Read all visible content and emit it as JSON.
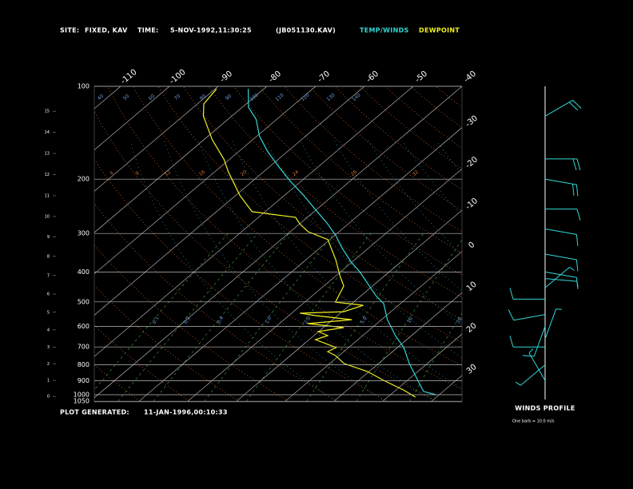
{
  "chart_data": {
    "type": "skew-t",
    "site_label": "SITE:",
    "site": "FIXED, KAV",
    "time_label": "TIME:",
    "time": "5-NOV-1992,11:30:25",
    "file": "(JB051130.KAV)",
    "footer_label": "PLOT GENERATED:",
    "footer_time": "11-JAN-1996,00:10:33",
    "wind_title": "WINDS PROFILE",
    "wind_note": "One barb = 10.0 m/s",
    "log_y": true,
    "ylim": [
      1050,
      100
    ],
    "yticks": [
      100,
      200,
      300,
      400,
      500,
      600,
      700,
      800,
      900,
      1000,
      1050
    ],
    "height_ticks": [
      0,
      1,
      2,
      3,
      4,
      5,
      6,
      7,
      8,
      9,
      10,
      11,
      12,
      13,
      14,
      15
    ],
    "isotherm_ticks": [
      -110,
      -100,
      -90,
      -80,
      -70,
      -60,
      -50,
      -40,
      -30,
      -20,
      -10,
      0,
      10,
      20,
      30
    ],
    "theta_labels": [
      "40",
      "50",
      "60",
      "70",
      "80",
      "90",
      "100",
      "110",
      "120",
      "130",
      "140"
    ],
    "orange_labels": [
      "4",
      "8",
      "12",
      "16",
      "20",
      "24",
      "28",
      "32"
    ],
    "mixing_ratio_labels": [
      "0.1",
      "0.2",
      "0.4",
      "1.0",
      "2.0",
      "5.0",
      "10",
      "20"
    ],
    "series": [
      {
        "name": "TEMP/WINDS",
        "color": "#33d6d6",
        "pressure": [
          1000,
          976,
          867,
          792,
          703,
          643,
          571,
          507,
          477,
          436,
          399,
          372,
          334,
          305,
          279,
          251,
          226,
          205,
          184,
          163,
          145,
          128,
          117,
          102
        ],
        "values": [
          29.3,
          26.0,
          20.5,
          16.3,
          11.3,
          6.7,
          1.2,
          -3.4,
          -7.0,
          -11.6,
          -16.1,
          -20.1,
          -25.5,
          -29.7,
          -34.3,
          -40.2,
          -46.0,
          -51.7,
          -57.6,
          -64.0,
          -69.5,
          -74.2,
          -78.7,
          -83.2
        ]
      },
      {
        "name": "DEWPOINT",
        "color": "#f0f020",
        "pressure": [
          1018,
          965,
          898,
          841,
          792,
          747,
          725,
          703,
          663,
          643,
          624,
          606,
          588,
          571,
          554,
          544,
          538,
          513,
          501,
          472,
          444,
          411,
          365,
          314,
          296,
          279,
          266,
          255,
          226,
          189,
          173,
          149,
          125,
          114,
          102
        ],
        "values": [
          25.7,
          21.5,
          15.1,
          9.7,
          2.9,
          -0.7,
          -3.3,
          -2.6,
          -8.7,
          -7.2,
          -10.1,
          -5.8,
          -14.2,
          -6.1,
          -14.5,
          -18.3,
          -9.7,
          -7.2,
          -13.7,
          -14.8,
          -15.9,
          -19.2,
          -23.9,
          -30.4,
          -36.4,
          -40.0,
          -42.4,
          -52.7,
          -59.1,
          -67.3,
          -71.0,
          -78.3,
          -85.8,
          -88.7,
          -89.7
        ]
      }
    ],
    "winds": {
      "pressure": [
        125,
        172,
        200,
        250,
        290,
        350,
        400,
        420,
        450,
        490,
        550,
        600,
        660,
        700,
        800,
        900
      ],
      "direction": [
        60,
        90,
        100,
        90,
        100,
        100,
        100,
        95,
        50,
        270,
        260,
        200,
        20,
        270,
        230,
        330
      ],
      "speed": [
        20,
        20,
        20,
        10,
        10,
        10,
        10,
        5,
        5,
        10,
        10,
        10,
        5,
        10,
        5,
        5
      ]
    }
  }
}
